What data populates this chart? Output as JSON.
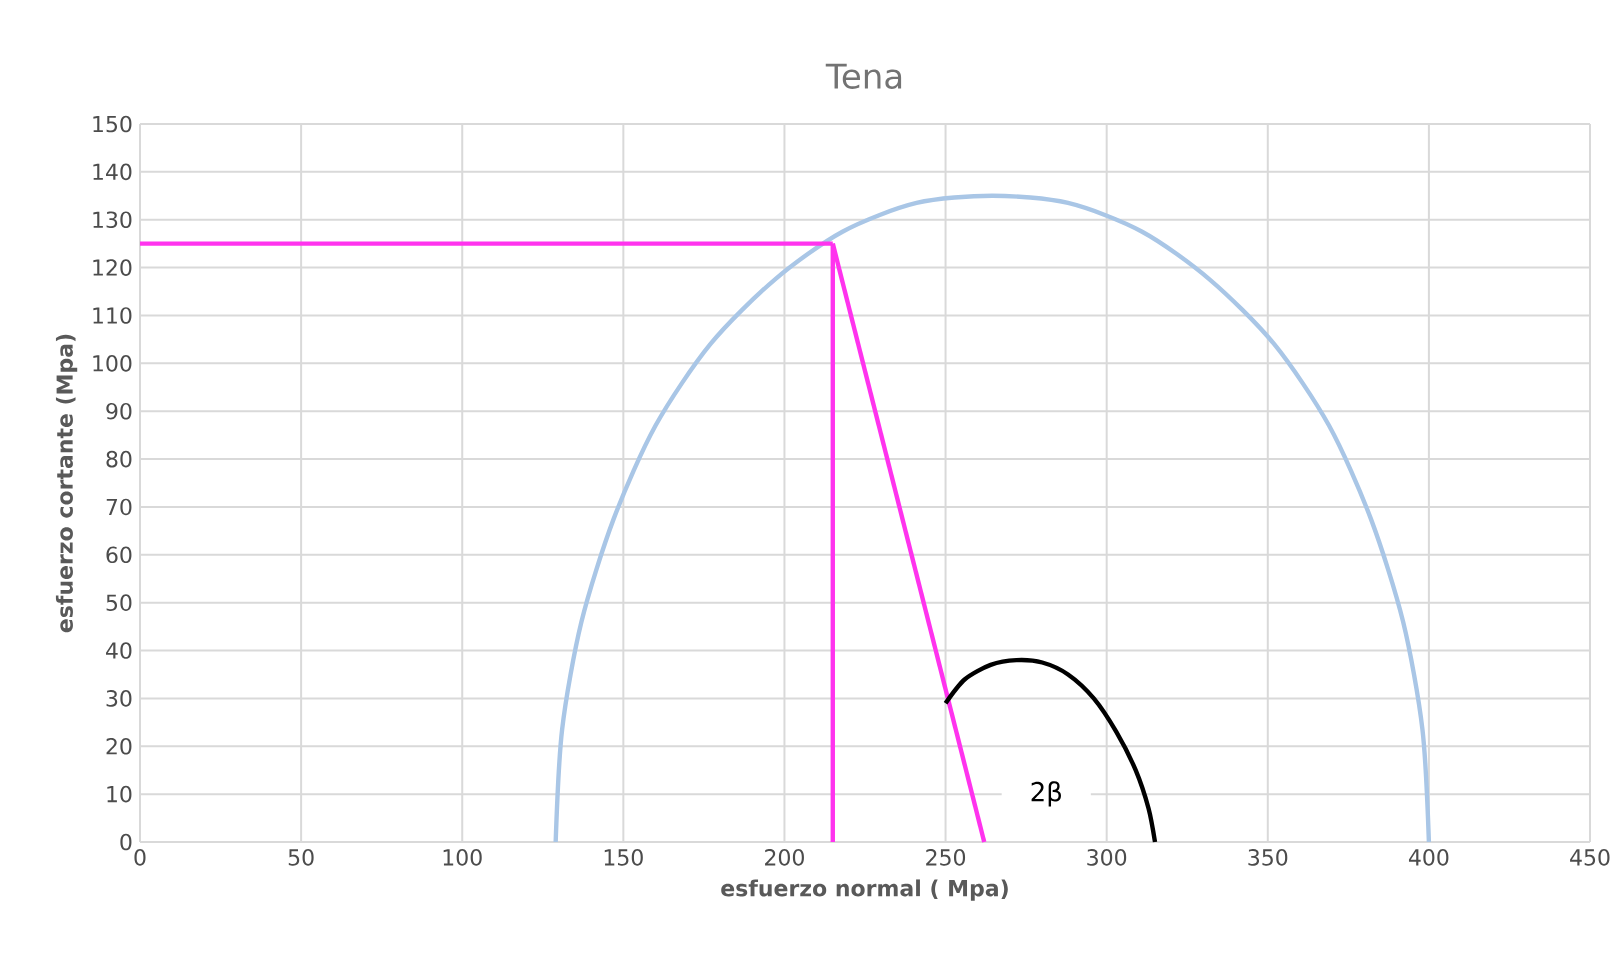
{
  "chart_data": {
    "type": "line",
    "title": "Tena",
    "xlabel": "esfuerzo normal ( Mpa)",
    "ylabel": "esfuerzo cortante (Mpa)",
    "xlim": [
      0,
      450
    ],
    "xticks": [
      0,
      50,
      100,
      150,
      200,
      250,
      300,
      350,
      400,
      450
    ],
    "ylim": [
      0,
      150
    ],
    "yticks": [
      0,
      10,
      20,
      30,
      40,
      50,
      60,
      70,
      80,
      90,
      100,
      110,
      120,
      130,
      140,
      150
    ],
    "grid": true,
    "marker": "none",
    "series": [
      {
        "color": "#a9c6e6",
        "x": [
          129,
          131,
          137,
          147,
          160,
          177,
          197,
          218,
          241,
          264.5,
          288,
          311,
          332,
          352,
          369,
          382,
          392,
          398,
          400
        ],
        "values": [
          0,
          23.5,
          46,
          67.5,
          87,
          104,
          117.5,
          127.5,
          133.5,
          135,
          133.5,
          127.5,
          117.5,
          104,
          87,
          67.5,
          46,
          23.5,
          0
        ]
      },
      {
        "color": "#ff33ee",
        "x": [
          0,
          215
        ],
        "values": [
          125,
          125
        ]
      },
      {
        "color": "#ff33ee",
        "x": [
          215,
          215
        ],
        "values": [
          0,
          125
        ]
      },
      {
        "color": "#ff33ee",
        "x": [
          215,
          262
        ],
        "values": [
          125,
          0
        ]
      },
      {
        "color": "#000000",
        "x": [
          250,
          256,
          264,
          272,
          280,
          288,
          296,
          303,
          309,
          313,
          315
        ],
        "values": [
          29,
          34,
          37,
          38,
          37.5,
          35,
          30,
          23,
          15,
          7,
          0
        ]
      }
    ],
    "annotations": [
      "2β"
    ]
  }
}
